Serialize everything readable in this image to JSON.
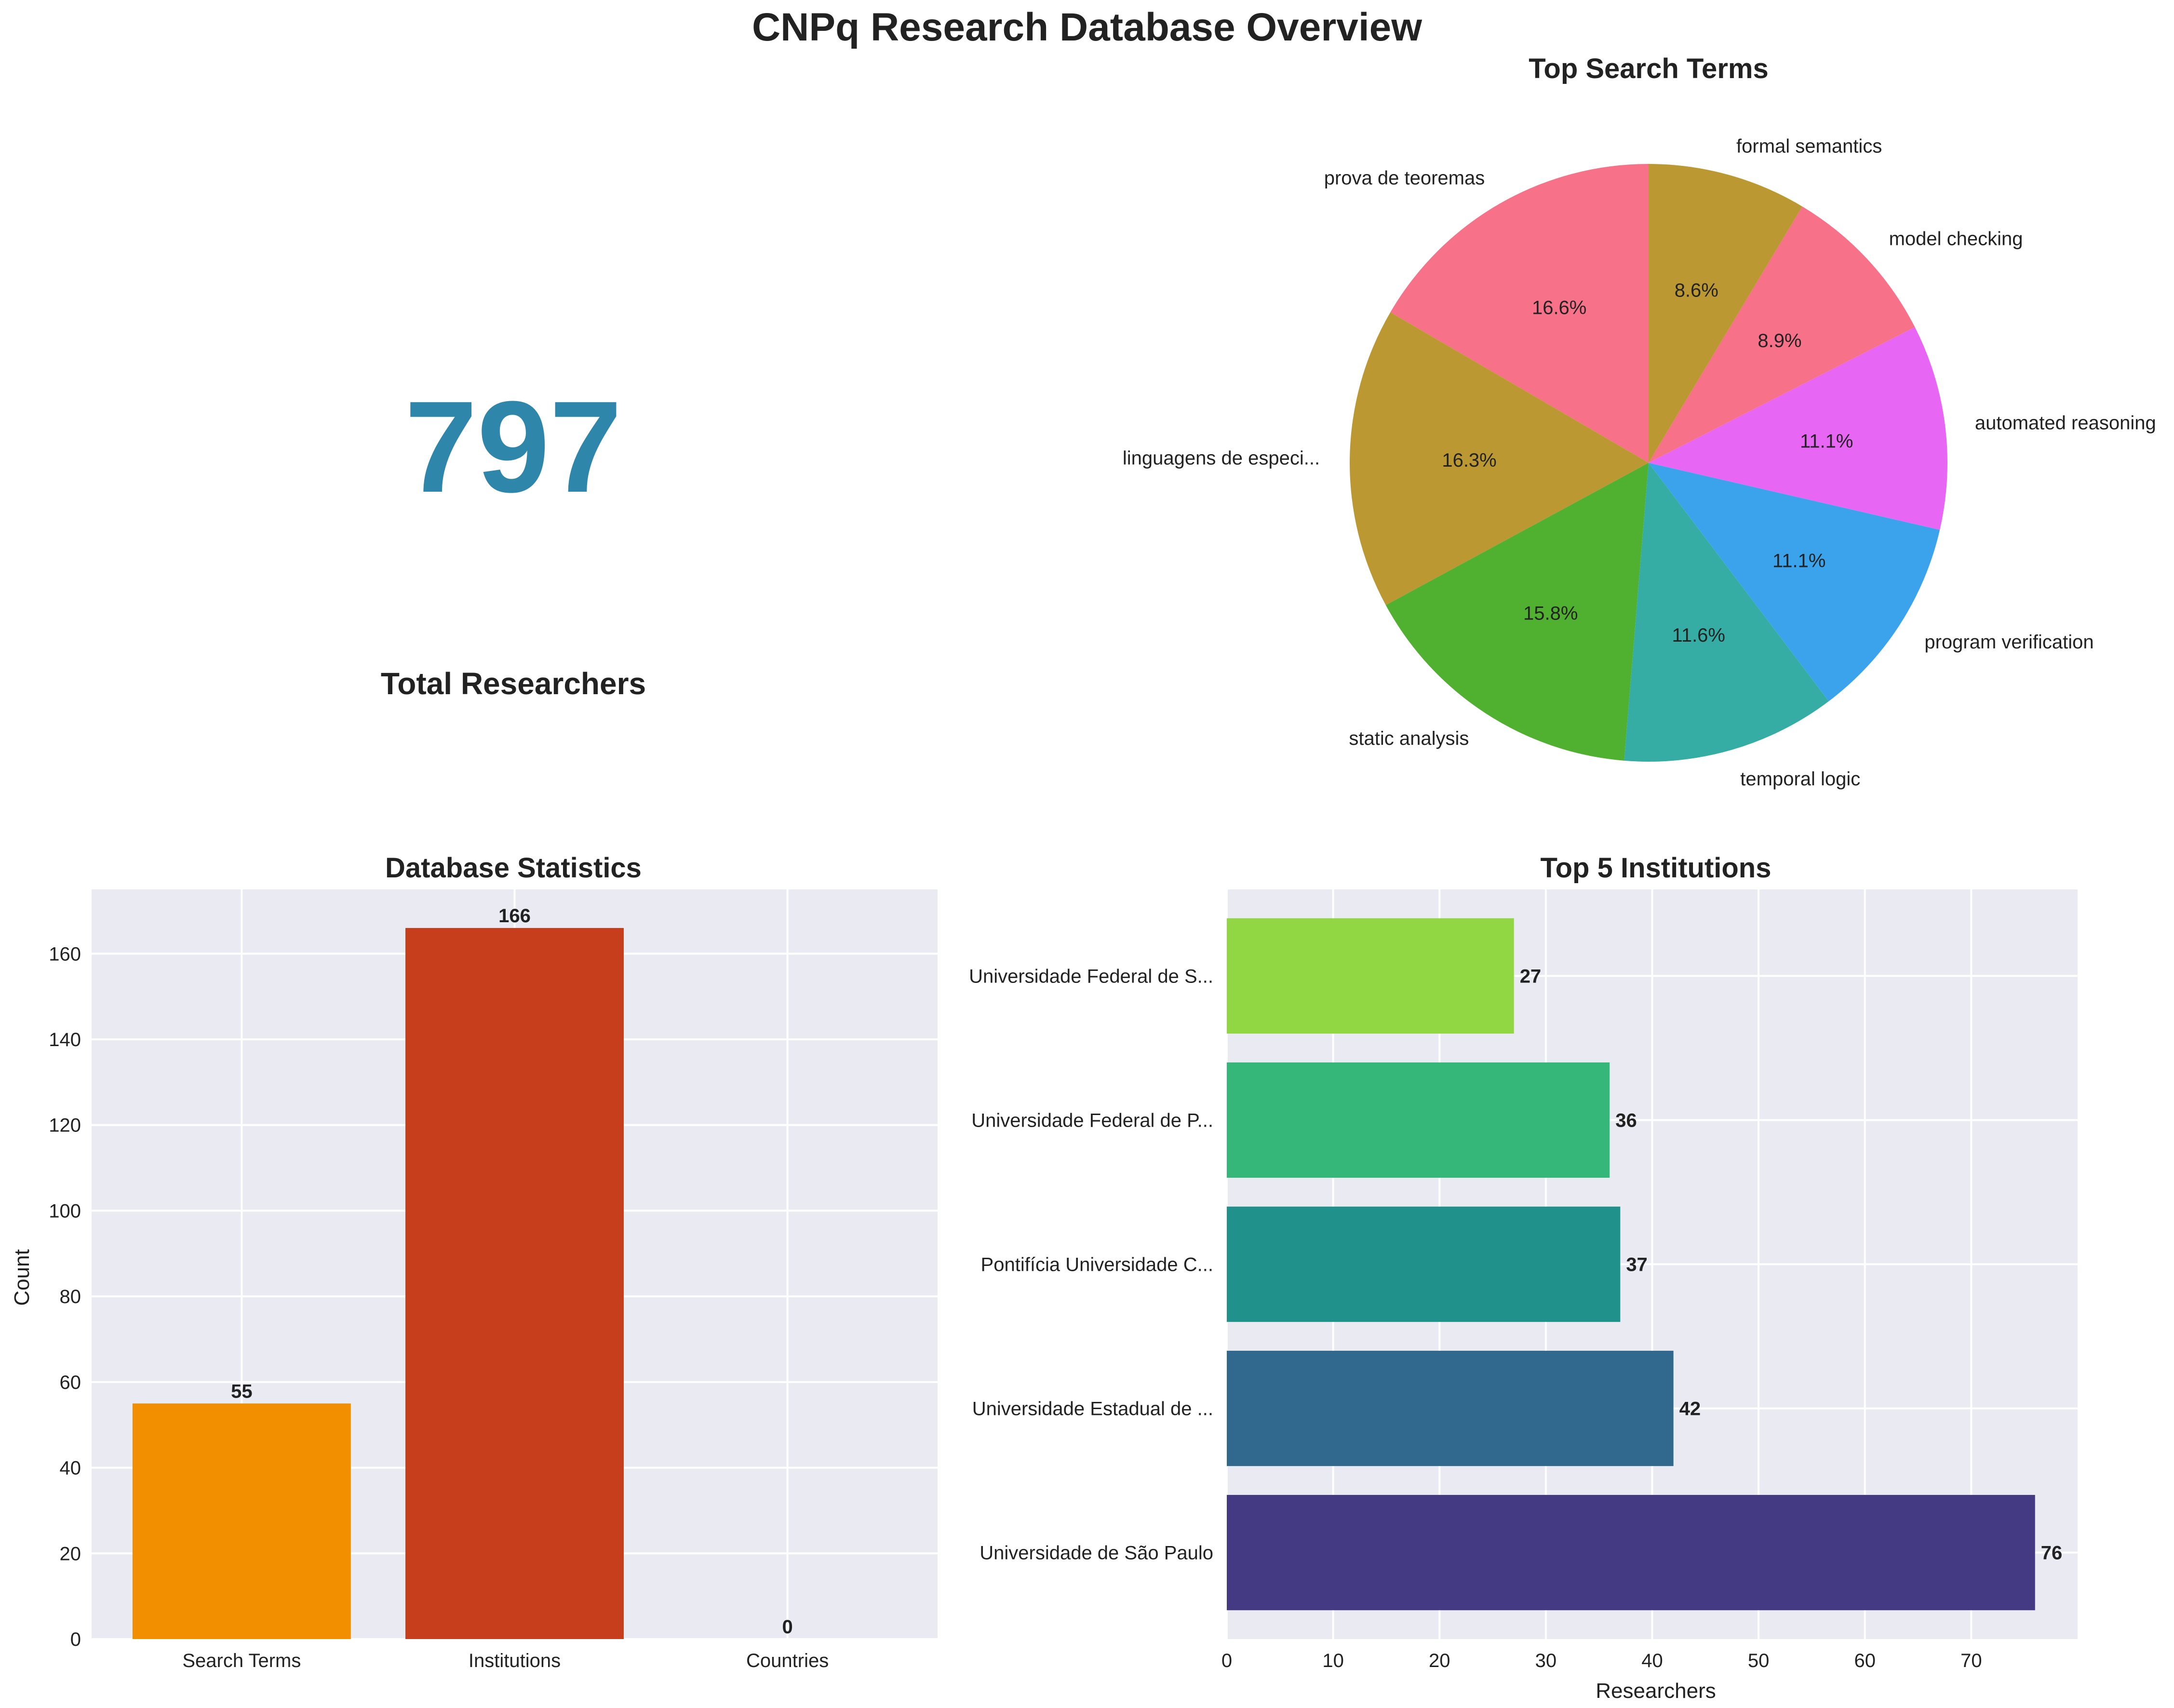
{
  "title": "CNPq Research Database Overview",
  "kpi": {
    "value": "797",
    "label": "Total Researchers",
    "color": "#2e86ab"
  },
  "chart_data": [
    {
      "type": "pie",
      "title": "Top Search Terms",
      "labels": [
        "prova de teoremas",
        "linguagens de especi...",
        "static analysis",
        "temporal logic",
        "program verification",
        "automated reasoning",
        "model checking",
        "formal semantics"
      ],
      "values": [
        16.6,
        16.3,
        15.8,
        11.6,
        11.1,
        11.1,
        8.9,
        8.6
      ],
      "value_labels": [
        "16.6%",
        "16.3%",
        "15.8%",
        "11.6%",
        "11.1%",
        "11.1%",
        "8.9%",
        "8.6%"
      ],
      "colors": [
        "#f77189",
        "#bb9832",
        "#50b131",
        "#36ada4",
        "#3ba3ec",
        "#e866f4",
        "#f77189",
        "#bb9832"
      ],
      "start_angle_deg": 90,
      "direction": "counterclockwise"
    },
    {
      "type": "bar",
      "title": "Database Statistics",
      "categories": [
        "Search Terms",
        "Institutions",
        "Countries"
      ],
      "values": [
        55,
        166,
        0
      ],
      "colors": [
        "#f18f01",
        "#c73e1d",
        "#6a994e"
      ],
      "ylabel": "Count",
      "xlabel": "",
      "ylim": [
        0,
        175
      ],
      "yticks": [
        0,
        20,
        40,
        60,
        80,
        100,
        120,
        140,
        160
      ],
      "grid": true
    },
    {
      "type": "bar",
      "orientation": "horizontal",
      "title": "Top 5 Institutions",
      "categories": [
        "Universidade de São Paulo",
        "Universidade Estadual de ...",
        "Pontifícia Universidade C...",
        "Universidade Federal de P...",
        "Universidade Federal de S..."
      ],
      "values": [
        76,
        42,
        37,
        36,
        27
      ],
      "colors": [
        "#443983",
        "#31688e",
        "#21918c",
        "#35b779",
        "#90d743"
      ],
      "xlabel": "Researchers",
      "xlim": [
        0,
        80
      ],
      "xticks": [
        0,
        10,
        20,
        30,
        40,
        50,
        60,
        70
      ],
      "grid": true
    }
  ]
}
